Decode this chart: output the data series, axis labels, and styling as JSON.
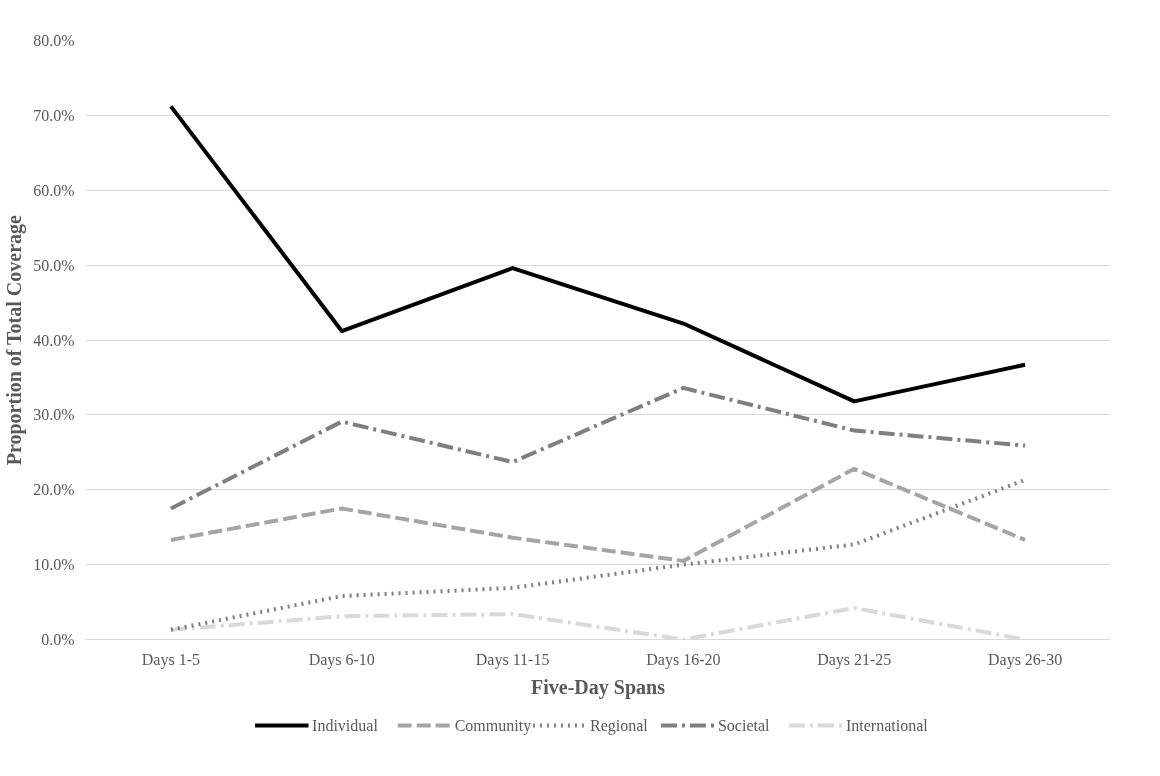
{
  "chart_data": {
    "type": "line",
    "xlabel": "Five-Day Spans",
    "ylabel": "Proportion of Total Coverage",
    "categories": [
      "Days 1-5",
      "Days 6-10",
      "Days 11-15",
      "Days 16-20",
      "Days 21-25",
      "Days 26-30"
    ],
    "ylim": [
      0,
      80
    ],
    "yticks": [
      {
        "value": 0,
        "label": "0.0%"
      },
      {
        "value": 10,
        "label": "10.0%"
      },
      {
        "value": 20,
        "label": "20.0%"
      },
      {
        "value": 30,
        "label": "30.0%"
      },
      {
        "value": 40,
        "label": "40.0%"
      },
      {
        "value": 50,
        "label": "50.0%"
      },
      {
        "value": 60,
        "label": "60.0%"
      },
      {
        "value": 70,
        "label": "70.0%"
      },
      {
        "value": 80,
        "label": "80.0%"
      }
    ],
    "grid": "y",
    "legend": "bottom",
    "marker": "none",
    "series": [
      {
        "name": "Individual",
        "color": "#000000",
        "line_style": "solid",
        "values": [
          71.2,
          41.2,
          49.6,
          42.2,
          31.8,
          36.7
        ]
      },
      {
        "name": "Community",
        "color": "#a5a5a5",
        "line_style": "dashed",
        "values": [
          13.3,
          17.5,
          13.6,
          10.5,
          22.8,
          13.3
        ]
      },
      {
        "name": "Regional",
        "color": "#7f7f7f",
        "line_style": "dotted",
        "values": [
          1.3,
          5.8,
          6.9,
          10.0,
          12.7,
          21.3
        ]
      },
      {
        "name": "Societal",
        "color": "#7f7f7f",
        "line_style": "dashdot",
        "values": [
          17.5,
          29.1,
          23.7,
          33.6,
          27.9,
          25.9
        ]
      },
      {
        "name": "International",
        "color": "#d9d9d9",
        "line_style": "dashdot",
        "values": [
          1.3,
          3.1,
          3.4,
          0,
          4.2,
          0
        ]
      }
    ]
  }
}
